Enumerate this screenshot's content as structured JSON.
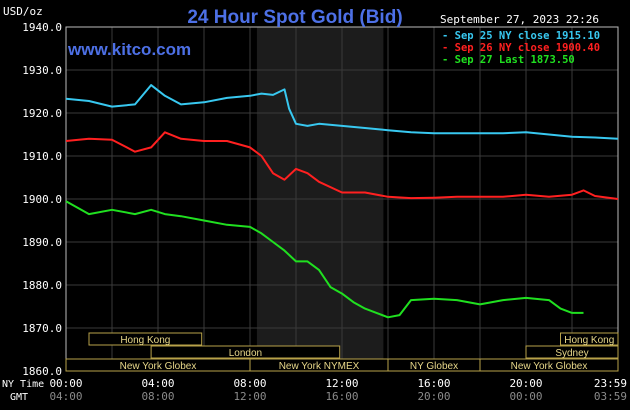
{
  "header": {
    "title": "24 Hour Spot Gold (Bid)",
    "units": "USD/oz",
    "site": "www.kitco.com",
    "timestamp": "September 27, 2023 22:26"
  },
  "legend": [
    {
      "text": "- Sep 25 NY close 1915.10",
      "color": "#38c8f0"
    },
    {
      "text": "- Sep 26 NY close 1900.40",
      "color": "#ff2020"
    },
    {
      "text": "- Sep 27 Last 1873.50",
      "color": "#20e020"
    }
  ],
  "axis": {
    "y_ticks": [
      "1940.0",
      "1930.0",
      "1920.0",
      "1910.0",
      "1900.0",
      "1890.0",
      "1880.0",
      "1870.0",
      "1860.0"
    ],
    "ny_label": "NY Time",
    "gmt_label": "GMT",
    "ny_ticks": [
      "00:00",
      "04:00",
      "08:00",
      "12:00",
      "16:00",
      "20:00",
      "23:59"
    ],
    "gmt_ticks": [
      "04:00",
      "08:00",
      "12:00",
      "16:00",
      "20:00",
      "00:00",
      "03:59"
    ]
  },
  "sessions": [
    {
      "label": "Hong Kong",
      "start": 1.0,
      "end": 5.9,
      "row": 0
    },
    {
      "label": "Hong Kong",
      "start": 21.5,
      "end": 24.0,
      "row": 0
    },
    {
      "label": "London",
      "start": 3.7,
      "end": 11.9,
      "row": 1
    },
    {
      "label": "Sydney",
      "start": 20.0,
      "end": 24.0,
      "row": 1
    },
    {
      "label": "New York Globex",
      "start": 0.0,
      "end": 8.0,
      "row": 2
    },
    {
      "label": "New York NYMEX",
      "start": 8.0,
      "end": 14.0,
      "row": 2
    },
    {
      "label": "NY Globex",
      "start": 14.0,
      "end": 18.0,
      "row": 2
    },
    {
      "label": "New York Globex",
      "start": 18.0,
      "end": 24.0,
      "row": 2
    }
  ],
  "chart_data": {
    "type": "line",
    "title": "24 Hour Spot Gold (Bid)",
    "xlabel": "NY Time",
    "ylabel": "USD/oz",
    "xlim": [
      0,
      24
    ],
    "ylim": [
      1860,
      1940
    ],
    "grid": true,
    "shaded_interval": [
      8.3,
      13.8
    ],
    "series": [
      {
        "name": "Sep 25 NY close 1915.10",
        "color": "#38c8f0",
        "x": [
          0,
          1,
          2,
          3,
          3.7,
          4.3,
          5,
          6,
          7,
          8,
          8.5,
          9,
          9.5,
          9.7,
          10,
          10.5,
          11,
          12,
          13,
          14,
          15,
          16,
          17,
          18,
          19,
          20,
          21,
          22,
          23,
          24
        ],
        "y": [
          1923.3,
          1922.8,
          1921.5,
          1922,
          1926.5,
          1924,
          1922,
          1922.5,
          1923.5,
          1924,
          1924.5,
          1924.2,
          1925.5,
          1921,
          1917.5,
          1917,
          1917.5,
          1917,
          1916.5,
          1916,
          1915.5,
          1915.3,
          1915.3,
          1915.3,
          1915.3,
          1915.5,
          1915,
          1914.5,
          1914.3,
          1914
        ]
      },
      {
        "name": "Sep 26 NY close 1900.40",
        "color": "#ff2020",
        "x": [
          0,
          1,
          2,
          3,
          3.7,
          4.3,
          5,
          6,
          7,
          8,
          8.5,
          9,
          9.5,
          10,
          10.5,
          11,
          12,
          13,
          14,
          15,
          16,
          17,
          18,
          19,
          20,
          21,
          22,
          22.5,
          23,
          24
        ],
        "y": [
          1913.5,
          1914,
          1913.8,
          1911,
          1912,
          1915.5,
          1914,
          1913.5,
          1913.5,
          1912,
          1910,
          1906,
          1904.5,
          1907,
          1906,
          1904,
          1901.5,
          1901.5,
          1900.5,
          1900.2,
          1900.3,
          1900.5,
          1900.5,
          1900.5,
          1901,
          1900.5,
          1901,
          1902,
          1900.7,
          1900
        ]
      },
      {
        "name": "Sep 27 Last 1873.50",
        "color": "#20e020",
        "x": [
          0,
          1,
          2,
          3,
          3.7,
          4.3,
          5,
          6,
          7,
          8,
          8.5,
          9,
          9.5,
          10,
          10.5,
          11,
          11.5,
          12,
          12.5,
          13,
          13.5,
          14,
          14.5,
          15,
          16,
          17,
          18,
          19,
          20,
          21,
          21.5,
          22,
          22.5
        ],
        "y": [
          1899.5,
          1896.5,
          1897.5,
          1896.5,
          1897.5,
          1896.5,
          1896,
          1895,
          1894,
          1893.5,
          1892,
          1890,
          1888,
          1885.5,
          1885.5,
          1883.5,
          1879.5,
          1878,
          1876,
          1874.5,
          1873.5,
          1872.5,
          1873,
          1876.5,
          1876.8,
          1876.5,
          1875.5,
          1876.5,
          1877,
          1876.5,
          1874.5,
          1873.5,
          1873.5
        ]
      }
    ]
  }
}
